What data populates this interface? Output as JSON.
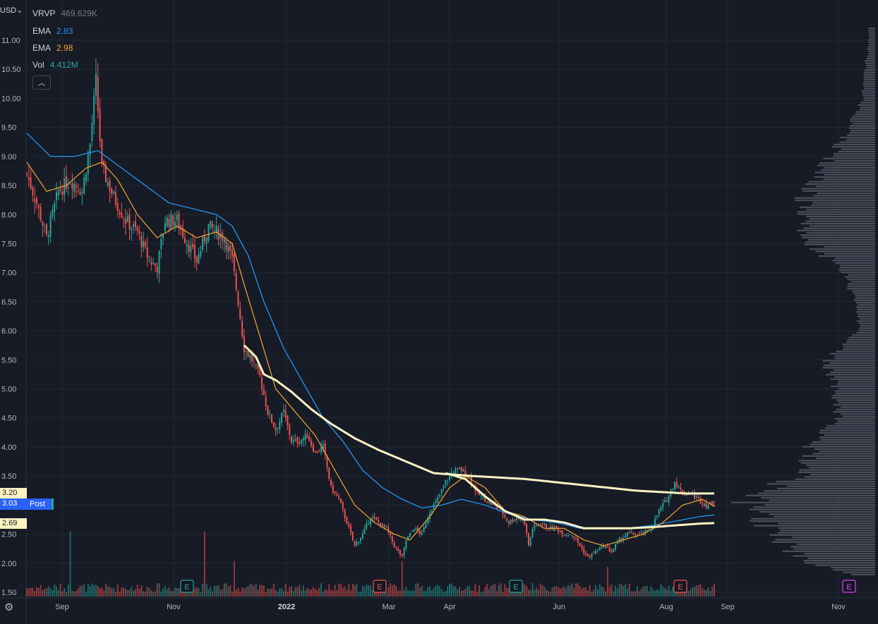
{
  "currency": "USD",
  "legend": {
    "vrvp": {
      "label": "VRVP",
      "value": "469.629K",
      "color": "#787b86"
    },
    "ema1": {
      "label": "EMA",
      "value": "2.83",
      "color": "#2196f3"
    },
    "ema2": {
      "label": "EMA",
      "value": "2.98",
      "color": "#f7a532"
    },
    "vol": {
      "label": "Vol",
      "value": "4.412M",
      "color": "#26a69a"
    }
  },
  "price_tags": {
    "high": "3.20",
    "current": "3.03",
    "post_label": "Post",
    "low": "2.69"
  },
  "colors": {
    "background": "#171b26",
    "up": "#26a69a",
    "down": "#ef5350",
    "ema_fast": "#f7a532",
    "ema_slow": "#2196f3",
    "vwap": "#fff3c4",
    "grid": "#232732"
  },
  "chart_data": {
    "type": "candlestick",
    "y_ticks": [
      "11.00",
      "10.50",
      "10.00",
      "9.50",
      "9.00",
      "8.50",
      "8.00",
      "7.50",
      "7.00",
      "6.50",
      "6.00",
      "5.50",
      "5.00",
      "4.50",
      "4.00",
      "3.50",
      "3.00",
      "2.50",
      "2.00",
      "1.50"
    ],
    "y_range": [
      1.5,
      11.25
    ],
    "x_ticks": [
      "Sep",
      "Nov",
      "2022",
      "Mar",
      "Apr",
      "Jun",
      "Aug",
      "Sep",
      "Nov"
    ],
    "earnings_markers": [
      {
        "label": "E",
        "date": "Nov 2021",
        "color": "#26a69a"
      },
      {
        "label": "E",
        "date": "Mar 2022",
        "color": "#ef5350"
      },
      {
        "label": "E",
        "date": "May 2022",
        "color": "#26a69a"
      },
      {
        "label": "E",
        "date": "Aug 2022",
        "color": "#ef5350"
      },
      {
        "label": "E",
        "date": "Nov 2022",
        "color": "#e040fb"
      }
    ],
    "close_path": [
      [
        0,
        8.7
      ],
      [
        5,
        8.2
      ],
      [
        10,
        7.6
      ],
      [
        16,
        8.4
      ],
      [
        22,
        8.6
      ],
      [
        28,
        8.4
      ],
      [
        32,
        9.2
      ],
      [
        35,
        10.3
      ],
      [
        38,
        8.8
      ],
      [
        44,
        8.3
      ],
      [
        50,
        7.9
      ],
      [
        56,
        7.7
      ],
      [
        62,
        7.2
      ],
      [
        66,
        7.1
      ],
      [
        70,
        7.9
      ],
      [
        76,
        7.9
      ],
      [
        80,
        7.6
      ],
      [
        86,
        7.2
      ],
      [
        92,
        7.8
      ],
      [
        96,
        7.7
      ],
      [
        100,
        7.6
      ],
      [
        104,
        7.2
      ],
      [
        107,
        6.5
      ],
      [
        110,
        5.7
      ],
      [
        114,
        5.5
      ],
      [
        118,
        5.2
      ],
      [
        122,
        4.6
      ],
      [
        126,
        4.3
      ],
      [
        130,
        4.6
      ],
      [
        134,
        4.1
      ],
      [
        138,
        4.1
      ],
      [
        142,
        4.2
      ],
      [
        146,
        3.9
      ],
      [
        150,
        4.0
      ],
      [
        154,
        3.3
      ],
      [
        158,
        3.1
      ],
      [
        162,
        2.7
      ],
      [
        166,
        2.3
      ],
      [
        170,
        2.5
      ],
      [
        174,
        2.8
      ],
      [
        178,
        2.7
      ],
      [
        182,
        2.6
      ],
      [
        186,
        2.3
      ],
      [
        190,
        2.1
      ],
      [
        192,
        2.4
      ],
      [
        196,
        2.6
      ],
      [
        200,
        2.5
      ],
      [
        204,
        2.9
      ],
      [
        208,
        3.1
      ],
      [
        212,
        3.4
      ],
      [
        216,
        3.6
      ],
      [
        220,
        3.6
      ],
      [
        224,
        3.5
      ],
      [
        228,
        3.2
      ],
      [
        232,
        3.1
      ],
      [
        236,
        3.0
      ],
      [
        240,
        2.9
      ],
      [
        244,
        2.7
      ],
      [
        248,
        2.8
      ],
      [
        252,
        2.7
      ],
      [
        254,
        2.3
      ],
      [
        256,
        2.6
      ],
      [
        260,
        2.7
      ],
      [
        264,
        2.6
      ],
      [
        268,
        2.6
      ],
      [
        272,
        2.5
      ],
      [
        276,
        2.5
      ],
      [
        280,
        2.3
      ],
      [
        284,
        2.1
      ],
      [
        288,
        2.2
      ],
      [
        292,
        2.3
      ],
      [
        296,
        2.2
      ],
      [
        300,
        2.4
      ],
      [
        304,
        2.5
      ],
      [
        308,
        2.5
      ],
      [
        312,
        2.5
      ],
      [
        316,
        2.6
      ],
      [
        320,
        2.9
      ],
      [
        324,
        3.1
      ],
      [
        328,
        3.4
      ],
      [
        332,
        3.2
      ],
      [
        336,
        3.2
      ],
      [
        340,
        3.1
      ],
      [
        344,
        3.0
      ],
      [
        348,
        3.03
      ]
    ],
    "ema_fast_path": [
      [
        0,
        8.9
      ],
      [
        10,
        8.4
      ],
      [
        20,
        8.5
      ],
      [
        30,
        8.8
      ],
      [
        38,
        8.9
      ],
      [
        46,
        8.6
      ],
      [
        56,
        8.0
      ],
      [
        66,
        7.6
      ],
      [
        76,
        7.8
      ],
      [
        86,
        7.6
      ],
      [
        96,
        7.7
      ],
      [
        104,
        7.5
      ],
      [
        110,
        6.8
      ],
      [
        118,
        5.9
      ],
      [
        126,
        5.0
      ],
      [
        136,
        4.6
      ],
      [
        146,
        4.2
      ],
      [
        156,
        3.6
      ],
      [
        166,
        3.0
      ],
      [
        176,
        2.7
      ],
      [
        186,
        2.5
      ],
      [
        194,
        2.4
      ],
      [
        204,
        2.8
      ],
      [
        214,
        3.3
      ],
      [
        222,
        3.5
      ],
      [
        232,
        3.3
      ],
      [
        242,
        2.9
      ],
      [
        252,
        2.8
      ],
      [
        262,
        2.6
      ],
      [
        272,
        2.6
      ],
      [
        282,
        2.4
      ],
      [
        292,
        2.3
      ],
      [
        302,
        2.4
      ],
      [
        312,
        2.5
      ],
      [
        322,
        2.7
      ],
      [
        332,
        3.0
      ],
      [
        342,
        3.1
      ],
      [
        348,
        2.98
      ]
    ],
    "ema_slow_path": [
      [
        0,
        9.4
      ],
      [
        12,
        9.0
      ],
      [
        24,
        9.0
      ],
      [
        36,
        9.1
      ],
      [
        48,
        8.8
      ],
      [
        60,
        8.5
      ],
      [
        72,
        8.2
      ],
      [
        84,
        8.1
      ],
      [
        96,
        8.0
      ],
      [
        104,
        7.8
      ],
      [
        112,
        7.3
      ],
      [
        120,
        6.5
      ],
      [
        130,
        5.7
      ],
      [
        140,
        5.1
      ],
      [
        150,
        4.5
      ],
      [
        160,
        4.1
      ],
      [
        170,
        3.6
      ],
      [
        180,
        3.3
      ],
      [
        190,
        3.1
      ],
      [
        200,
        2.95
      ],
      [
        210,
        3.0
      ],
      [
        220,
        3.1
      ],
      [
        232,
        3.0
      ],
      [
        244,
        2.85
      ],
      [
        256,
        2.75
      ],
      [
        268,
        2.7
      ],
      [
        280,
        2.6
      ],
      [
        292,
        2.6
      ],
      [
        304,
        2.6
      ],
      [
        316,
        2.65
      ],
      [
        328,
        2.72
      ],
      [
        340,
        2.8
      ],
      [
        348,
        2.83
      ]
    ],
    "vwap_path": [
      [
        110,
        5.75
      ],
      [
        116,
        5.55
      ],
      [
        120,
        5.25
      ],
      [
        126,
        5.15
      ],
      [
        134,
        4.95
      ],
      [
        144,
        4.65
      ],
      [
        154,
        4.4
      ],
      [
        166,
        4.15
      ],
      [
        178,
        3.95
      ],
      [
        192,
        3.75
      ],
      [
        206,
        3.55
      ],
      [
        226,
        3.5
      ],
      [
        252,
        3.45
      ],
      [
        280,
        3.35
      ],
      [
        308,
        3.25
      ],
      [
        334,
        3.2
      ],
      [
        348,
        3.2
      ]
    ],
    "vwap2_path": [
      [
        212,
        3.55
      ],
      [
        222,
        3.45
      ],
      [
        232,
        3.15
      ],
      [
        242,
        2.9
      ],
      [
        252,
        2.75
      ],
      [
        262,
        2.75
      ],
      [
        272,
        2.7
      ],
      [
        282,
        2.6
      ],
      [
        292,
        2.6
      ],
      [
        304,
        2.6
      ],
      [
        316,
        2.62
      ],
      [
        328,
        2.65
      ],
      [
        340,
        2.68
      ],
      [
        348,
        2.69
      ]
    ],
    "volume_profile": [
      [
        11.0,
        0.05
      ],
      [
        10.5,
        0.08
      ],
      [
        10.0,
        0.1
      ],
      [
        9.5,
        0.2
      ],
      [
        9.0,
        0.35
      ],
      [
        8.5,
        0.5
      ],
      [
        8.0,
        0.62
      ],
      [
        7.5,
        0.5
      ],
      [
        7.0,
        0.25
      ],
      [
        6.5,
        0.15
      ],
      [
        6.0,
        0.12
      ],
      [
        5.5,
        0.38
      ],
      [
        5.0,
        0.32
      ],
      [
        4.5,
        0.3
      ],
      [
        4.0,
        0.5
      ],
      [
        3.5,
        0.6
      ],
      [
        3.2,
        0.95
      ],
      [
        3.0,
        1.0
      ],
      [
        2.8,
        0.9
      ],
      [
        2.6,
        0.82
      ],
      [
        2.4,
        0.75
      ],
      [
        2.2,
        0.65
      ],
      [
        2.0,
        0.55
      ],
      [
        1.8,
        0.2
      ]
    ]
  }
}
